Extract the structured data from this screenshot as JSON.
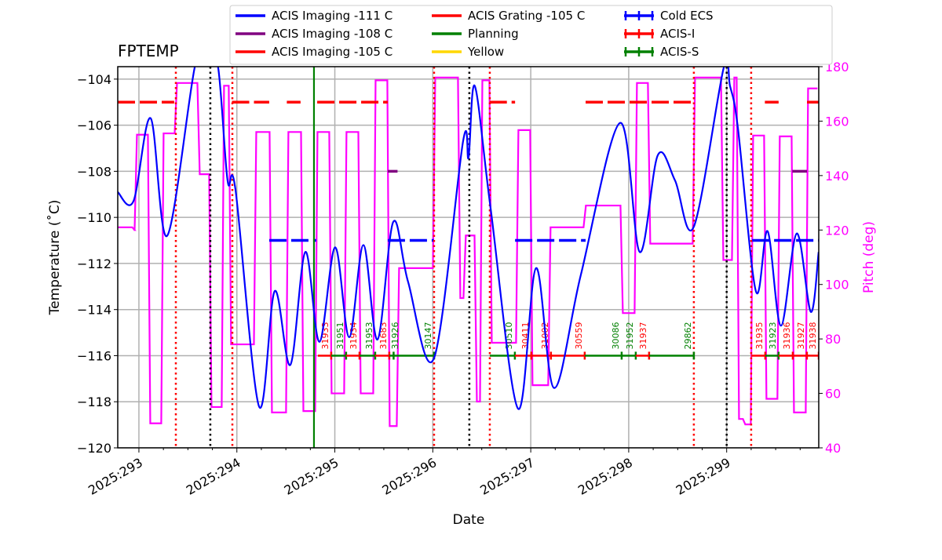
{
  "chart_data": {
    "type": "line",
    "title": "FPTEMP",
    "xlabel": "Date",
    "ylabel": "Temperature ($^\\circ$C)",
    "ylabel_display": "Temperature (˚C)",
    "y2label": "Pitch (deg)",
    "xlim": [
      292.784,
      299.94
    ],
    "ylim": [
      -120,
      -103.46
    ],
    "y2lim": [
      40,
      180
    ],
    "grid": true,
    "legend_placement": "top (above plot)",
    "x_ticks": [
      293,
      294,
      295,
      296,
      297,
      298,
      299
    ],
    "x_tick_labels": [
      "2025:293",
      "2025:294",
      "2025:295",
      "2025:296",
      "2025:297",
      "2025:298",
      "2025:299"
    ],
    "y_ticks": [
      -120,
      -118,
      -116,
      -114,
      -112,
      -110,
      -108,
      -106,
      -104
    ],
    "y_tick_labels": [
      "−120",
      "−118",
      "−116",
      "−114",
      "−112",
      "−110",
      "−108",
      "−106",
      "−104"
    ],
    "y2_ticks": [
      40,
      60,
      80,
      100,
      120,
      140,
      160,
      180
    ],
    "y2_tick_labels": [
      "40",
      "60",
      "80",
      "100",
      "120",
      "140",
      "160",
      "180"
    ],
    "colors": {
      "temp": "#0000ff",
      "pitch": "#ff00ff",
      "red": "#ff0000",
      "green": "#008000",
      "purple": "#800080",
      "yellow": "#ffd700",
      "black": "#000000",
      "grid": "#b0b0b0"
    },
    "legend": [
      {
        "label": "ACIS Imaging -111 C",
        "color": "#0000ff",
        "style": "line"
      },
      {
        "label": "ACIS Imaging -108 C",
        "color": "#800080",
        "style": "line"
      },
      {
        "label": "ACIS Imaging -105 C",
        "color": "#ff0000",
        "style": "line"
      },
      {
        "label": "ACIS Grating -105 C",
        "color": "#ff0000",
        "style": "line"
      },
      {
        "label": "Planning",
        "color": "#008000",
        "style": "line"
      },
      {
        "label": "Yellow",
        "color": "#ffd700",
        "style": "line"
      },
      {
        "label": "Cold ECS",
        "color": "#0000ff",
        "style": "errorbar"
      },
      {
        "label": "ACIS-I",
        "color": "#ff0000",
        "style": "errorbar"
      },
      {
        "label": "ACIS-S",
        "color": "#008000",
        "style": "errorbar"
      }
    ],
    "temperature": [
      [
        292.784,
        -108.9
      ],
      [
        292.944,
        -109.3
      ],
      [
        293.12,
        -105.7
      ],
      [
        293.288,
        -110.8
      ],
      [
        293.569,
        -103.5
      ],
      [
        293.69,
        -102.5
      ],
      [
        293.809,
        -103.5
      ],
      [
        293.905,
        -108.4
      ],
      [
        293.986,
        -108.8
      ],
      [
        294.226,
        -118.2
      ],
      [
        294.386,
        -113.2
      ],
      [
        294.546,
        -116.4
      ],
      [
        294.699,
        -111.5
      ],
      [
        294.843,
        -115.4
      ],
      [
        295.003,
        -111.3
      ],
      [
        295.147,
        -115.2
      ],
      [
        295.292,
        -111.2
      ],
      [
        295.436,
        -115.3
      ],
      [
        295.596,
        -110.2
      ],
      [
        295.748,
        -112.8
      ],
      [
        296.013,
        -116.1
      ],
      [
        296.309,
        -106.7
      ],
      [
        296.365,
        -107.4
      ],
      [
        296.429,
        -104.3
      ],
      [
        296.59,
        -109.6
      ],
      [
        296.87,
        -118.3
      ],
      [
        297.054,
        -112.2
      ],
      [
        297.239,
        -117.4
      ],
      [
        297.511,
        -112.5
      ],
      [
        297.912,
        -105.9
      ],
      [
        298.112,
        -111.5
      ],
      [
        298.297,
        -107.3
      ],
      [
        298.473,
        -108.4
      ],
      [
        298.665,
        -110.4
      ],
      [
        298.97,
        -103.5
      ],
      [
        299.034,
        -104.3
      ],
      [
        299.114,
        -106.1
      ],
      [
        299.298,
        -113.2
      ],
      [
        299.418,
        -110.6
      ],
      [
        299.554,
        -114.7
      ],
      [
        299.715,
        -110.7
      ],
      [
        299.859,
        -114.1
      ],
      [
        299.939,
        -111.5
      ]
    ],
    "pitch_segments": [
      [
        292.784,
        292.944,
        121
      ],
      [
        292.944,
        292.968,
        120
      ],
      [
        292.968,
        293.104,
        155
      ],
      [
        293.104,
        293.24,
        49
      ],
      [
        293.24,
        293.377,
        155.5
      ],
      [
        293.377,
        293.609,
        174
      ],
      [
        293.609,
        293.729,
        140.5
      ],
      [
        293.729,
        293.857,
        55
      ],
      [
        293.857,
        293.929,
        173
      ],
      [
        293.929,
        294.186,
        78
      ],
      [
        294.186,
        294.346,
        156
      ],
      [
        294.346,
        294.514,
        53
      ],
      [
        294.514,
        294.667,
        156
      ],
      [
        294.667,
        294.811,
        53.5
      ],
      [
        294.811,
        294.955,
        156
      ],
      [
        294.955,
        295.107,
        60
      ],
      [
        295.107,
        295.252,
        156
      ],
      [
        295.252,
        295.404,
        60
      ],
      [
        295.404,
        295.548,
        175
      ],
      [
        295.548,
        295.644,
        48
      ],
      [
        295.644,
        296.013,
        106
      ],
      [
        296.013,
        296.269,
        176
      ],
      [
        296.269,
        296.325,
        95
      ],
      [
        296.325,
        296.438,
        118
      ],
      [
        296.438,
        296.494,
        57
      ],
      [
        296.494,
        296.59,
        175
      ],
      [
        296.59,
        296.862,
        78.6
      ],
      [
        296.862,
        297.006,
        156.7
      ],
      [
        297.006,
        297.19,
        63
      ],
      [
        297.19,
        297.551,
        121
      ],
      [
        297.551,
        297.928,
        129
      ],
      [
        297.928,
        298.072,
        89.5
      ],
      [
        298.072,
        298.208,
        174
      ],
      [
        298.208,
        298.665,
        115
      ],
      [
        298.665,
        298.954,
        176
      ],
      [
        298.954,
        299.066,
        109
      ],
      [
        299.066,
        299.114,
        176
      ],
      [
        299.114,
        299.178,
        50.6
      ],
      [
        299.178,
        299.258,
        48.6
      ],
      [
        299.258,
        299.394,
        154.7
      ],
      [
        299.394,
        299.53,
        58
      ],
      [
        299.53,
        299.675,
        154.4
      ],
      [
        299.675,
        299.819,
        53
      ],
      [
        299.819,
        299.939,
        172
      ]
    ],
    "limit_lines": [
      {
        "level": -105,
        "color": "#ff0000",
        "dashed": true,
        "intervals": [
          [
            292.784,
            293.36
          ],
          [
            293.95,
            294.33
          ],
          [
            294.51,
            294.65
          ],
          [
            294.82,
            295.54
          ],
          [
            296.58,
            296.84
          ],
          [
            297.56,
            298.66
          ],
          [
            299.39,
            299.53
          ],
          [
            299.82,
            299.94
          ]
        ]
      },
      {
        "level": -111,
        "color": "#0000ff",
        "dashed": true,
        "intervals": [
          [
            294.33,
            294.81
          ],
          [
            295.54,
            296.01
          ],
          [
            296.84,
            297.56
          ],
          [
            299.26,
            299.94
          ]
        ]
      },
      {
        "level": -108,
        "color": "#800080",
        "dashed": false,
        "intervals": [
          [
            295.54,
            295.64
          ],
          [
            299.67,
            299.82
          ]
        ]
      }
    ],
    "planning_lines": [
      294.787
    ],
    "red_dotted_lines": [
      293.377,
      293.954,
      296.013,
      296.582,
      298.665,
      299.25
    ],
    "black_dotted_lines": [
      293.729,
      296.373,
      299.0
    ],
    "obsid_level": -116,
    "obsids": [
      {
        "id": "31933",
        "start": 294.827,
        "end": 294.963,
        "color": "#ff0000"
      },
      {
        "id": "31951",
        "start": 294.963,
        "end": 295.115,
        "color": "#008000"
      },
      {
        "id": "31934",
        "start": 295.115,
        "end": 295.252,
        "color": "#ff0000"
      },
      {
        "id": "31953",
        "start": 295.252,
        "end": 295.412,
        "color": "#008000"
      },
      {
        "id": "31683",
        "start": 295.412,
        "end": 295.556,
        "color": "#ff0000"
      },
      {
        "id": "31926",
        "start": 295.556,
        "end": 295.6,
        "color": "#008000"
      },
      {
        "id": "30147",
        "start": 295.6,
        "end": 296.013,
        "color": "#008000"
      },
      {
        "id": "30510",
        "start": 296.582,
        "end": 296.838,
        "color": "#008000"
      },
      {
        "id": "30411",
        "start": 296.838,
        "end": 297.006,
        "color": "#ff0000"
      },
      {
        "id": "31002",
        "start": 297.006,
        "end": 297.206,
        "color": "#ff0000"
      },
      {
        "id": "30559",
        "start": 297.206,
        "end": 297.551,
        "color": "#ff0000"
      },
      {
        "id": "30086",
        "start": 297.551,
        "end": 297.928,
        "color": "#008000"
      },
      {
        "id": "31952",
        "start": 297.928,
        "end": 298.072,
        "color": "#008000"
      },
      {
        "id": "31937",
        "start": 298.072,
        "end": 298.208,
        "color": "#ff0000"
      },
      {
        "id": "29862",
        "start": 298.208,
        "end": 298.665,
        "color": "#008000"
      },
      {
        "id": "31935",
        "start": 299.25,
        "end": 299.394,
        "color": "#ff0000"
      },
      {
        "id": "31923",
        "start": 299.394,
        "end": 299.53,
        "color": "#008000"
      },
      {
        "id": "31936",
        "start": 299.53,
        "end": 299.675,
        "color": "#ff0000"
      },
      {
        "id": "31927",
        "start": 299.675,
        "end": 299.819,
        "color": "#ff0000"
      },
      {
        "id": "31938",
        "start": 299.819,
        "end": 299.94,
        "color": "#ff0000"
      }
    ]
  }
}
